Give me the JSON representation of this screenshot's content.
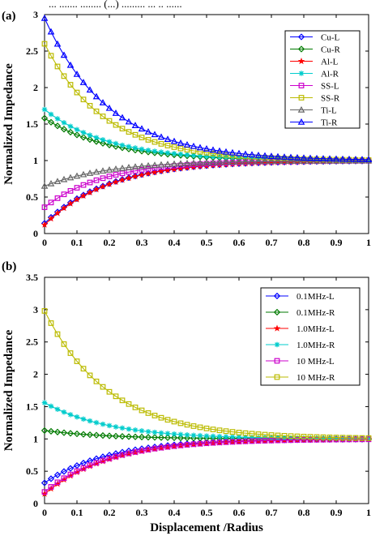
{
  "header_fragment": "...  ....... ........ (...) ......... ... .. ......",
  "chart_data": [
    {
      "type": "line",
      "panel_label": "(a)",
      "xlabel": "",
      "ylabel": "Normalized Impedance",
      "xlim": [
        0,
        1
      ],
      "ylim": [
        0,
        3
      ],
      "xticks": [
        "0",
        "0.1",
        "0.2",
        "0.3",
        "0.4",
        "0.5",
        "0.6",
        "0.7",
        "0.8",
        "0.9",
        "1"
      ],
      "yticks": [
        "0",
        "0.5",
        "1",
        "1.5",
        "2",
        "2.5",
        "3"
      ],
      "grid": false,
      "legend_position": "top-right",
      "series": [
        {
          "name": "Cu-L",
          "color": "#0000ff",
          "marker": "diamond",
          "y0": 0.14,
          "k": 5.0
        },
        {
          "name": "Cu-R",
          "color": "#007a00",
          "marker": "diamond",
          "y0": 1.58,
          "k": 5.0
        },
        {
          "name": "Al-L",
          "color": "#ff0000",
          "marker": "star",
          "y0": 0.12,
          "k": 5.0
        },
        {
          "name": "Al-R",
          "color": "#00cccc",
          "marker": "asterisk",
          "y0": 1.7,
          "k": 5.0
        },
        {
          "name": "SS-L",
          "color": "#cc00cc",
          "marker": "square",
          "y0": 0.36,
          "k": 5.4
        },
        {
          "name": "SS-R",
          "color": "#bbbb00",
          "marker": "square",
          "y0": 2.6,
          "k": 5.4
        },
        {
          "name": "Ti-L",
          "color": "#666666",
          "marker": "triangle",
          "y0": 0.65,
          "k": 5.0
        },
        {
          "name": "Ti-R",
          "color": "#0000ff",
          "marker": "triangle",
          "y0": 2.95,
          "k": 5.0
        }
      ]
    },
    {
      "type": "line",
      "panel_label": "(b)",
      "xlabel": "Displacement /Radius",
      "ylabel": "Normalized Impedance",
      "xlim": [
        0,
        1
      ],
      "ylim": [
        0,
        3.5
      ],
      "xticks": [
        "0",
        "0.1",
        "0.2",
        "0.3",
        "0.4",
        "0.5",
        "0.6",
        "0.7",
        "0.8",
        "0.9",
        "1"
      ],
      "yticks": [
        "0",
        "0.5",
        "1",
        "1.5",
        "2",
        "2.5",
        "3",
        "3.5"
      ],
      "grid": false,
      "legend_position": "top-right",
      "series": [
        {
          "name": "0.1MHz-L",
          "color": "#0000ff",
          "marker": "diamond",
          "y0": 0.32,
          "k": 5.0
        },
        {
          "name": "0.1MHz-R",
          "color": "#007a00",
          "marker": "diamond",
          "y0": 1.13,
          "k": 5.0
        },
        {
          "name": "1.0MHz-L",
          "color": "#ff0000",
          "marker": "star",
          "y0": 0.15,
          "k": 5.0
        },
        {
          "name": "1.0MHz-R",
          "color": "#00cccc",
          "marker": "asterisk",
          "y0": 1.56,
          "k": 5.0
        },
        {
          "name": "10 MHz-L",
          "color": "#cc00cc",
          "marker": "square",
          "y0": 0.18,
          "k": 5.0
        },
        {
          "name": "10 MHz-R",
          "color": "#bbbb00",
          "marker": "square",
          "y0": 2.98,
          "k": 5.0
        }
      ]
    }
  ]
}
